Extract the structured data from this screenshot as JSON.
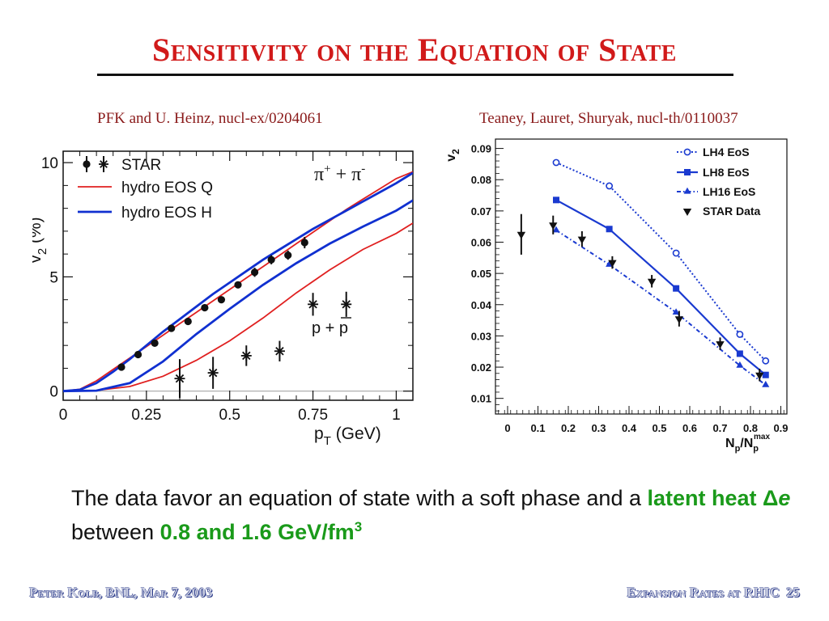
{
  "slide": {
    "title": "Sensitivity on the Equation of State",
    "caption_left": "PFK and U. Heinz, nucl-ex/0204061",
    "caption_right": "Teaney, Lauret, Shuryak, nucl-th/0110037",
    "conclusion": {
      "part1": "The data favor an equation of state with a soft phase and a ",
      "highlight1": "latent heat ",
      "delta": "Δ",
      "e": "e",
      "part2": " between ",
      "highlight2": "0.8 and 1.6 GeV/fm",
      "highlight2_sup": "3"
    },
    "footer_left": "Peter Kolb, BNL, Mar 7, 2003",
    "footer_right": "Expansion Rates at RHIC",
    "page_number": "25"
  },
  "chart_data": [
    {
      "type": "scatter",
      "xlabel": "p_T (GeV)",
      "ylabel": "v_2 (%)",
      "xlim": [
        0,
        1.05
      ],
      "ylim": [
        -0.4,
        10.5
      ],
      "xticks": [
        {
          "value": 0,
          "label": "0"
        },
        {
          "value": 0.25,
          "label": "0.25"
        },
        {
          "value": 0.5,
          "label": "0.5"
        },
        {
          "value": 0.75,
          "label": "0.75"
        },
        {
          "value": 1,
          "label": "1"
        }
      ],
      "yticks": [
        {
          "value": 0,
          "label": "0"
        },
        {
          "value": 5,
          "label": "5"
        },
        {
          "value": 10,
          "label": "10"
        }
      ],
      "annotations": {
        "pion": {
          "base": "π",
          "sup1": "+",
          "mid": " + π",
          "sup2": "-"
        },
        "proton": {
          "text": "p + p"
        }
      },
      "legend": {
        "placement": "top-left",
        "entries": [
          "STAR",
          "hydro EOS Q",
          "hydro EOS H"
        ]
      },
      "series": [
        {
          "name": "STAR",
          "species": "pion",
          "marker": "circle",
          "color": "#111111",
          "points": [
            {
              "x": 0.175,
              "y": 1.05,
              "err": 0.15
            },
            {
              "x": 0.225,
              "y": 1.6,
              "err": 0.15
            },
            {
              "x": 0.275,
              "y": 2.1,
              "err": 0.15
            },
            {
              "x": 0.325,
              "y": 2.75,
              "err": 0.15
            },
            {
              "x": 0.375,
              "y": 3.05,
              "err": 0.15
            },
            {
              "x": 0.425,
              "y": 3.65,
              "err": 0.15
            },
            {
              "x": 0.475,
              "y": 4.0,
              "err": 0.15
            },
            {
              "x": 0.525,
              "y": 4.65,
              "err": 0.15
            },
            {
              "x": 0.575,
              "y": 5.2,
              "err": 0.2
            },
            {
              "x": 0.625,
              "y": 5.75,
              "err": 0.2
            },
            {
              "x": 0.675,
              "y": 5.95,
              "err": 0.2
            },
            {
              "x": 0.725,
              "y": 6.5,
              "err": 0.25
            }
          ]
        },
        {
          "name": "STAR",
          "species": "proton",
          "marker": "star",
          "color": "#111111",
          "points": [
            {
              "x": 0.35,
              "y": 0.55,
              "err": 0.85
            },
            {
              "x": 0.45,
              "y": 0.8,
              "err": 0.7
            },
            {
              "x": 0.55,
              "y": 1.55,
              "err": 0.45
            },
            {
              "x": 0.65,
              "y": 1.75,
              "err": 0.45
            },
            {
              "x": 0.75,
              "y": 3.8,
              "err": 0.5
            },
            {
              "x": 0.85,
              "y": 3.8,
              "err": 0.55
            }
          ]
        },
        {
          "name": "hydro EOS Q",
          "species": "pion",
          "style": "line",
          "color": "#e02020",
          "points": [
            [
              0,
              0
            ],
            [
              0.05,
              0.08
            ],
            [
              0.1,
              0.45
            ],
            [
              0.15,
              0.95
            ],
            [
              0.2,
              1.45
            ],
            [
              0.25,
              1.95
            ],
            [
              0.3,
              2.45
            ],
            [
              0.35,
              2.95
            ],
            [
              0.4,
              3.45
            ],
            [
              0.45,
              3.95
            ],
            [
              0.5,
              4.45
            ],
            [
              0.55,
              4.95
            ],
            [
              0.6,
              5.45
            ],
            [
              0.65,
              5.95
            ],
            [
              0.7,
              6.45
            ],
            [
              0.75,
              6.95
            ],
            [
              0.8,
              7.45
            ],
            [
              0.85,
              7.95
            ],
            [
              0.9,
              8.4
            ],
            [
              0.95,
              8.85
            ],
            [
              1.0,
              9.3
            ],
            [
              1.05,
              9.6
            ]
          ]
        },
        {
          "name": "hydro EOS H",
          "species": "pion",
          "style": "line",
          "color": "#1030d0",
          "points": [
            [
              0,
              0
            ],
            [
              0.05,
              0.06
            ],
            [
              0.1,
              0.35
            ],
            [
              0.15,
              0.85
            ],
            [
              0.2,
              1.4
            ],
            [
              0.25,
              2.0
            ],
            [
              0.3,
              2.6
            ],
            [
              0.35,
              3.15
            ],
            [
              0.4,
              3.7
            ],
            [
              0.45,
              4.25
            ],
            [
              0.5,
              4.75
            ],
            [
              0.55,
              5.25
            ],
            [
              0.6,
              5.75
            ],
            [
              0.65,
              6.2
            ],
            [
              0.7,
              6.65
            ],
            [
              0.75,
              7.1
            ],
            [
              0.8,
              7.5
            ],
            [
              0.85,
              7.9
            ],
            [
              0.9,
              8.3
            ],
            [
              0.95,
              8.7
            ],
            [
              1.0,
              9.1
            ],
            [
              1.05,
              9.55
            ]
          ]
        },
        {
          "name": "hydro EOS Q",
          "species": "proton",
          "style": "line",
          "color": "#e02020",
          "points": [
            [
              0,
              0
            ],
            [
              0.1,
              0.03
            ],
            [
              0.2,
              0.2
            ],
            [
              0.3,
              0.65
            ],
            [
              0.4,
              1.35
            ],
            [
              0.5,
              2.2
            ],
            [
              0.6,
              3.2
            ],
            [
              0.7,
              4.3
            ],
            [
              0.8,
              5.3
            ],
            [
              0.9,
              6.2
            ],
            [
              1.0,
              6.9
            ],
            [
              1.05,
              7.35
            ]
          ]
        },
        {
          "name": "hydro EOS H",
          "species": "proton",
          "style": "line",
          "color": "#1030d0",
          "points": [
            [
              0,
              0
            ],
            [
              0.1,
              0.02
            ],
            [
              0.2,
              0.35
            ],
            [
              0.3,
              1.3
            ],
            [
              0.4,
              2.5
            ],
            [
              0.5,
              3.6
            ],
            [
              0.6,
              4.65
            ],
            [
              0.7,
              5.6
            ],
            [
              0.8,
              6.45
            ],
            [
              0.9,
              7.2
            ],
            [
              1.0,
              7.9
            ],
            [
              1.05,
              8.35
            ]
          ]
        }
      ]
    },
    {
      "type": "line",
      "xlabel": "N_p/N_p^max",
      "ylabel": "v_2",
      "xlim": [
        -0.04,
        0.92
      ],
      "ylim": [
        0.005,
        0.093
      ],
      "xticks": [
        {
          "value": 0,
          "label": "0"
        },
        {
          "value": 0.1,
          "label": "0.1"
        },
        {
          "value": 0.2,
          "label": "0.2"
        },
        {
          "value": 0.3,
          "label": "0.3"
        },
        {
          "value": 0.4,
          "label": "0.4"
        },
        {
          "value": 0.5,
          "label": "0.5"
        },
        {
          "value": 0.6,
          "label": "0.6"
        },
        {
          "value": 0.7,
          "label": "0.7"
        },
        {
          "value": 0.8,
          "label": "0.8"
        },
        {
          "value": 0.9,
          "label": "0.9"
        }
      ],
      "yticks": [
        {
          "value": 0.01,
          "label": "0.01"
        },
        {
          "value": 0.02,
          "label": "0.02"
        },
        {
          "value": 0.03,
          "label": "0.03"
        },
        {
          "value": 0.04,
          "label": "0.04"
        },
        {
          "value": 0.05,
          "label": "0.05"
        },
        {
          "value": 0.06,
          "label": "0.06"
        },
        {
          "value": 0.07,
          "label": "0.07"
        },
        {
          "value": 0.08,
          "label": "0.08"
        },
        {
          "value": 0.09,
          "label": "0.09"
        }
      ],
      "legend": {
        "placement": "top-right",
        "entries": [
          "LH4 EoS",
          "LH8 EoS",
          "LH16 EoS",
          "STAR Data"
        ]
      },
      "series": [
        {
          "name": "LH4 EoS",
          "marker": "open-circle",
          "dash": "dotted",
          "color": "#1a3ad0",
          "points": [
            [
              0.16,
              0.0855
            ],
            [
              0.335,
              0.078
            ],
            [
              0.555,
              0.0565
            ],
            [
              0.765,
              0.0305
            ],
            [
              0.85,
              0.022
            ]
          ]
        },
        {
          "name": "LH8 EoS",
          "marker": "square",
          "dash": "solid",
          "color": "#1a3ad0",
          "points": [
            [
              0.16,
              0.0735
            ],
            [
              0.335,
              0.0642
            ],
            [
              0.555,
              0.0452
            ],
            [
              0.765,
              0.0243
            ],
            [
              0.85,
              0.0175
            ]
          ]
        },
        {
          "name": "LH16 EoS",
          "marker": "triangle-up",
          "dash": "dash-dot",
          "color": "#1a3ad0",
          "points": [
            [
              0.16,
              0.0638
            ],
            [
              0.335,
              0.0528
            ],
            [
              0.555,
              0.0375
            ],
            [
              0.765,
              0.0205
            ],
            [
              0.85,
              0.0143
            ]
          ]
        },
        {
          "name": "STAR Data",
          "marker": "triangle-down",
          "color": "#111111",
          "points": [
            {
              "x": 0.045,
              "y": 0.0625,
              "err": 0.0065
            },
            {
              "x": 0.15,
              "y": 0.0655,
              "err": 0.003
            },
            {
              "x": 0.245,
              "y": 0.061,
              "err": 0.0025
            },
            {
              "x": 0.345,
              "y": 0.0535,
              "err": 0.002
            },
            {
              "x": 0.475,
              "y": 0.0475,
              "err": 0.002
            },
            {
              "x": 0.565,
              "y": 0.0355,
              "err": 0.0025
            },
            {
              "x": 0.7,
              "y": 0.0275,
              "err": 0.002
            },
            {
              "x": 0.83,
              "y": 0.0175,
              "err": 0.002
            }
          ]
        }
      ]
    }
  ]
}
